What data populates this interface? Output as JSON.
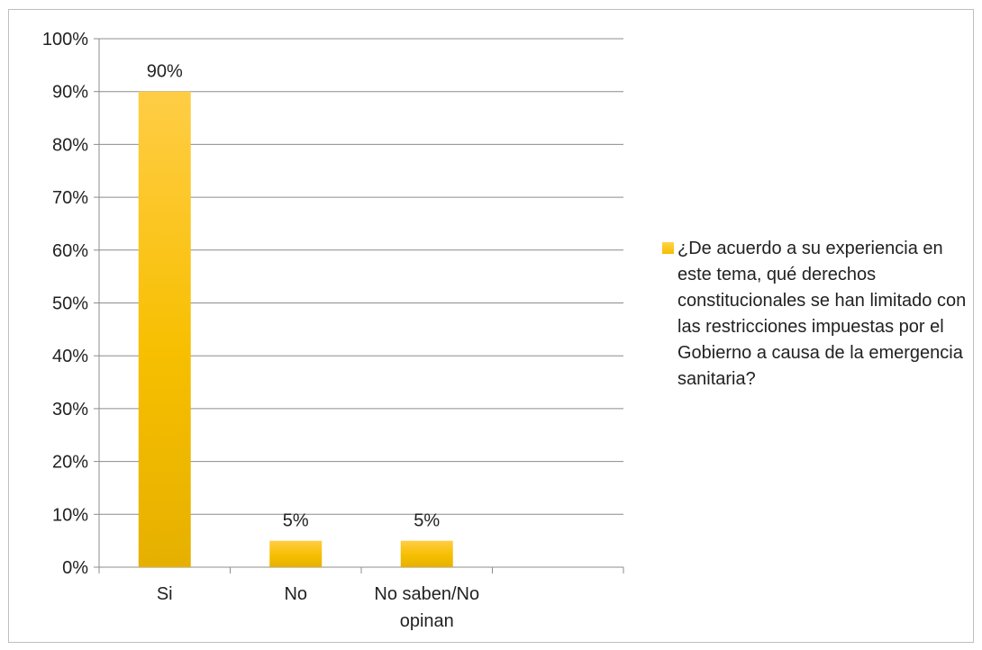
{
  "chart_data": {
    "type": "bar",
    "categories": [
      "Si",
      "No",
      "No saben/No opinan"
    ],
    "series": [
      {
        "name": "¿De acuerdo a su experiencia en este tema, qué derechos constitucionales se han limitado con las restricciones impuestas por el Gobierno a causa de la emergencia sanitaria?",
        "values": [
          0.9,
          0.05,
          0.05
        ],
        "data_labels": [
          "90%",
          "5%",
          "5%"
        ],
        "color": "#F7BF00"
      }
    ],
    "y_ticks": [
      "0%",
      "10%",
      "20%",
      "30%",
      "40%",
      "50%",
      "60%",
      "70%",
      "80%",
      "90%",
      "100%"
    ],
    "ylim": [
      0,
      1
    ],
    "grid": true,
    "legend_position": "right",
    "title": "",
    "xlabel": "",
    "ylabel": ""
  }
}
